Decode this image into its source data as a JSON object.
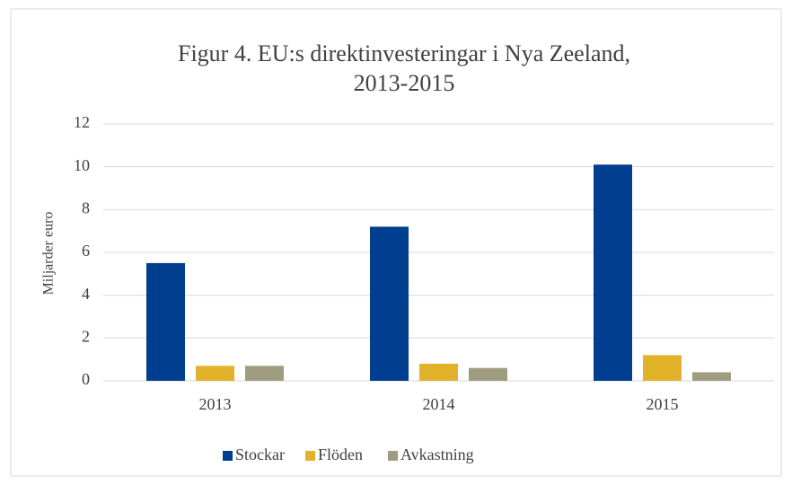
{
  "chart_data": {
    "type": "bar",
    "title": "Figur 4. EU:s direktinvesteringar i Nya Zeeland, 2013-2015",
    "y_label": "Miljarder euro",
    "categories": [
      "2013",
      "2014",
      "2015"
    ],
    "series": [
      {
        "name": "Stockar",
        "color": "#003f8f",
        "values": [
          5.5,
          7.2,
          10.1
        ]
      },
      {
        "name": "Flöden",
        "color": "#e3b22b",
        "values": [
          0.7,
          0.8,
          1.2
        ]
      },
      {
        "name": "Avkastning",
        "color": "#a09c80",
        "values": [
          0.7,
          0.6,
          0.4
        ]
      }
    ],
    "ylim": [
      0,
      12
    ],
    "yticks": [
      0,
      2,
      4,
      6,
      8,
      10,
      12
    ],
    "grid": true,
    "legend": "bottom"
  }
}
